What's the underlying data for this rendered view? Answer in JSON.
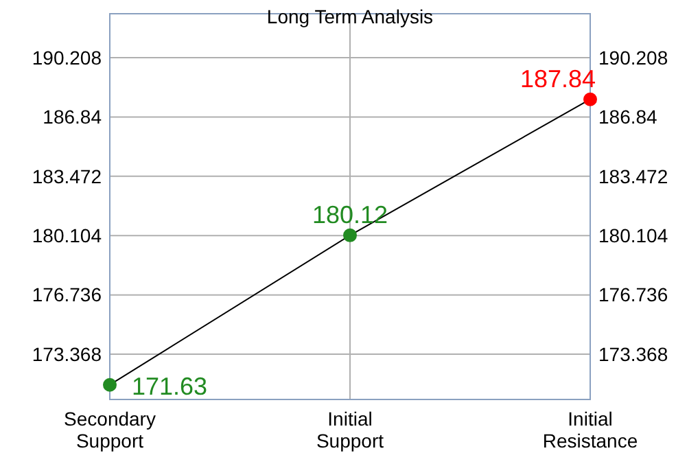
{
  "chart_data": {
    "type": "line",
    "title": "Long Term Analysis",
    "categories": [
      "Secondary\nSupport",
      "Initial\nSupport",
      "Initial\nResistance"
    ],
    "series": [
      {
        "color": "#000000",
        "colors": [
          "#228b22",
          "#228b22",
          "#ff0000"
        ],
        "values": [
          171.63,
          180.12,
          187.84
        ]
      }
    ],
    "ylim": [
      170.8,
      192.7
    ],
    "yticks": [
      173.368,
      176.736,
      180.104,
      183.472,
      186.84,
      190.208
    ],
    "y2lim": [
      170.8,
      192.7
    ],
    "y2ticks": [
      173.368,
      176.736,
      180.104,
      183.472,
      186.84,
      190.208
    ],
    "grid": true,
    "marker": "circle",
    "data_labels": true
  }
}
